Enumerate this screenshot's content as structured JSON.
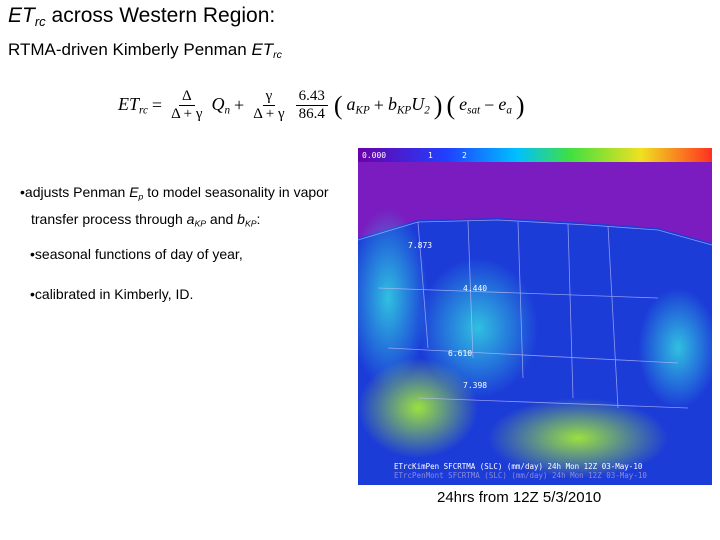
{
  "header": {
    "title_main": "ET",
    "title_sub": "rc",
    "title_rest": " across Western Region:",
    "subtitle_main": "RTMA-driven Kimberly Penman ",
    "subtitle_var": "ET",
    "subtitle_sub": "rc"
  },
  "equation": {
    "lhs": "ET",
    "lhs_sub": "rc",
    "equals": "=",
    "frac1_num": "Δ",
    "frac1_den": "Δ + γ",
    "q": "Q",
    "q_sub": "n",
    "plus": "+",
    "frac2_num": "γ",
    "frac2_den": "Δ + γ",
    "frac3_num": "6.43",
    "frac3_den": "86.4",
    "open": "(",
    "close": ")",
    "a": "a",
    "a_sub": "KP",
    "b": "b",
    "b_sub": "KP",
    "u": "U",
    "u_sub": "2",
    "e1": "e",
    "e1_sub": "sat",
    "minus": "−",
    "e2": "e",
    "e2_sub": "a"
  },
  "bullets": [
    {
      "text1": "adjusts Penman ",
      "var1": "E",
      "var1_sub": "p",
      "text2": " to model seasonality in vapor transfer process through ",
      "var2": "a",
      "var2_sub": "KP",
      "text3": " and ",
      "var3": "b",
      "var3_sub": "KP",
      "text4": ":"
    },
    {
      "text1": "seasonal functions of day of year,"
    },
    {
      "text1": "calibrated in Kimberly, ID."
    }
  ],
  "map": {
    "colorbar_labels": [
      "0.000",
      "1",
      "2"
    ],
    "point_labels": [
      "7.873",
      "4.440",
      "6.610",
      "7.398"
    ],
    "footer": [
      "ETrcKimPen SFCRTMA (SLC) (mm/day) 24h Mon 12Z 03-May-10",
      "ETrcPenMont SFCRTMA (SLC) (mm/day) 24h Mon 12Z 03-May-10"
    ]
  },
  "caption": "24hrs from 12Z 5/3/2010"
}
